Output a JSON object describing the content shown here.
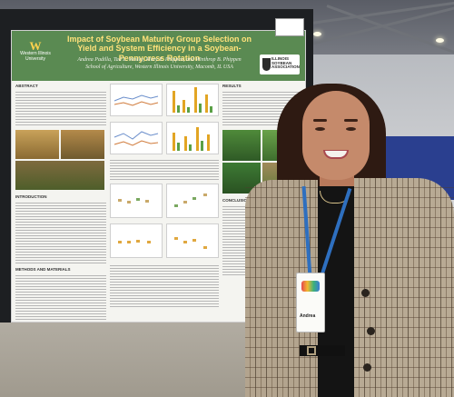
{
  "poster": {
    "title": "Impact of Soybean Maturity Group Selection on Yield and System Efficiency in a Soybean-Pennycress Rotation",
    "authors": "Andrea Padilla, Tad L. Wesley, Mary E. Phippen, and Winthrop B. Phippen",
    "affiliation": "School of Agriculture, Western Illinois University, Macomb, IL USA",
    "university_logo_text": "Western Illinois University",
    "sponsor_logo_text": "ILLINOIS SOYBEAN ASSOCIATION",
    "sections": [
      "ABSTRACT",
      "INTRODUCTION",
      "RESULTS",
      "CONCLUSIONS",
      "METHODS AND MATERIALS"
    ]
  },
  "badge": {
    "name": "Andrea"
  },
  "colors": {
    "poster_banner": "#5a8a52",
    "title_text": "#ffe27a",
    "lanyard": "#2e6fbf",
    "curtain": "#2a3f8f"
  }
}
